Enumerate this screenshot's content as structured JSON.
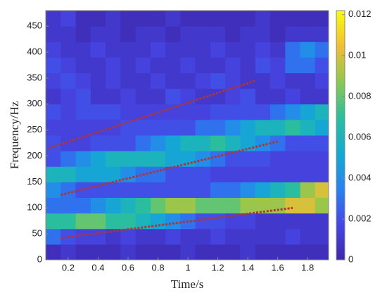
{
  "chart_data": {
    "type": "heatmap",
    "x_label": "Time/s",
    "y_label": "Frequency/Hz",
    "x": [
      0.1,
      0.2,
      0.3,
      0.4,
      0.5,
      0.6,
      0.7,
      0.8,
      0.9,
      1.0,
      1.1,
      1.2,
      1.3,
      1.4,
      1.5,
      1.6,
      1.7,
      1.8,
      1.9
    ],
    "y": [
      15,
      45,
      75,
      105,
      135,
      165,
      195,
      225,
      255,
      285,
      315,
      345,
      375,
      405,
      435,
      465
    ],
    "z": [
      [
        0.0005,
        0.001,
        0.0005,
        0.0005,
        0.0005,
        0.001,
        0.0005,
        0.0005,
        0.0005,
        0.001,
        0.0005,
        0.0005,
        0.0005,
        0.001,
        0.0005,
        0.0005,
        0.0005,
        0.0005,
        0.0005
      ],
      [
        0.003,
        0.002,
        0.0015,
        0.0015,
        0.001,
        0.0015,
        0.001,
        0.001,
        0.0015,
        0.001,
        0.001,
        0.0015,
        0.001,
        0.001,
        0.001,
        0.001,
        0.0015,
        0.001,
        0.001
      ],
      [
        0.007,
        0.007,
        0.008,
        0.008,
        0.007,
        0.007,
        0.006,
        0.005,
        0.004,
        0.003,
        0.002,
        0.002,
        0.0015,
        0.0015,
        0.001,
        0.001,
        0.001,
        0.001,
        0.001
      ],
      [
        0.003,
        0.003,
        0.003,
        0.004,
        0.005,
        0.006,
        0.007,
        0.008,
        0.009,
        0.009,
        0.008,
        0.008,
        0.008,
        0.009,
        0.009,
        0.009,
        0.01,
        0.01,
        0.009
      ],
      [
        0.004,
        0.003,
        0.002,
        0.002,
        0.002,
        0.002,
        0.002,
        0.002,
        0.002,
        0.002,
        0.002,
        0.003,
        0.003,
        0.004,
        0.005,
        0.006,
        0.007,
        0.009,
        0.01
      ],
      [
        0.006,
        0.006,
        0.005,
        0.005,
        0.005,
        0.004,
        0.003,
        0.003,
        0.002,
        0.002,
        0.002,
        0.0015,
        0.0015,
        0.0015,
        0.0015,
        0.0015,
        0.0015,
        0.0015,
        0.0015
      ],
      [
        0.002,
        0.003,
        0.004,
        0.005,
        0.006,
        0.006,
        0.006,
        0.006,
        0.005,
        0.005,
        0.004,
        0.003,
        0.002,
        0.002,
        0.002,
        0.0015,
        0.0015,
        0.0015,
        0.0015
      ],
      [
        0.002,
        0.0015,
        0.0015,
        0.002,
        0.002,
        0.002,
        0.003,
        0.004,
        0.005,
        0.006,
        0.006,
        0.007,
        0.006,
        0.005,
        0.004,
        0.003,
        0.002,
        0.002,
        0.002
      ],
      [
        0.0015,
        0.0015,
        0.0015,
        0.0015,
        0.0015,
        0.002,
        0.002,
        0.002,
        0.002,
        0.002,
        0.003,
        0.003,
        0.004,
        0.005,
        0.006,
        0.006,
        0.007,
        0.006,
        0.005
      ],
      [
        0.002,
        0.0015,
        0.002,
        0.002,
        0.002,
        0.0015,
        0.0015,
        0.0015,
        0.0015,
        0.0015,
        0.0015,
        0.002,
        0.002,
        0.002,
        0.002,
        0.003,
        0.004,
        0.005,
        0.006
      ],
      [
        0.001,
        0.0015,
        0.002,
        0.001,
        0.001,
        0.0015,
        0.001,
        0.001,
        0.002,
        0.0015,
        0.001,
        0.001,
        0.0015,
        0.002,
        0.001,
        0.001,
        0.0015,
        0.001,
        0.001
      ],
      [
        0.0015,
        0.002,
        0.0015,
        0.001,
        0.0015,
        0.001,
        0.001,
        0.0015,
        0.001,
        0.001,
        0.0015,
        0.002,
        0.0015,
        0.001,
        0.001,
        0.0015,
        0.001,
        0.001,
        0.0015
      ],
      [
        0.002,
        0.0015,
        0.001,
        0.001,
        0.0015,
        0.001,
        0.0015,
        0.001,
        0.001,
        0.0015,
        0.001,
        0.001,
        0.0015,
        0.001,
        0.002,
        0.0015,
        0.003,
        0.003,
        0.002
      ],
      [
        0.0015,
        0.001,
        0.001,
        0.0015,
        0.001,
        0.001,
        0.001,
        0.0015,
        0.001,
        0.001,
        0.001,
        0.0015,
        0.001,
        0.001,
        0.0015,
        0.001,
        0.003,
        0.004,
        0.003
      ],
      [
        0.001,
        0.001,
        0.0005,
        0.001,
        0.001,
        0.0005,
        0.001,
        0.001,
        0.0005,
        0.001,
        0.001,
        0.001,
        0.0005,
        0.001,
        0.001,
        0.0005,
        0.001,
        0.001,
        0.001
      ],
      [
        0.001,
        0.0015,
        0.0005,
        0.0005,
        0.001,
        0.0005,
        0.0005,
        0.0005,
        0.001,
        0.0005,
        0.0005,
        0.0005,
        0.0005,
        0.0005,
        0.001,
        0.0005,
        0.0005,
        0.0005,
        0.0005
      ]
    ],
    "xlim": [
      0.05,
      1.94
    ],
    "xticks": [
      0.2,
      0.4,
      0.6,
      0.8,
      1,
      1.2,
      1.4,
      1.6,
      1.8
    ],
    "ylim": [
      0,
      480
    ],
    "yticks": [
      0,
      50,
      100,
      150,
      200,
      250,
      300,
      350,
      400,
      450
    ],
    "colormap": "parula",
    "clim": [
      0,
      0.0122
    ],
    "cticks": [
      0,
      0.002,
      0.004,
      0.006,
      0.008,
      0.01,
      0.012
    ],
    "guide_lines": [
      {
        "x": [
          0.07,
          1.45
        ],
        "y": [
          215,
          345
        ]
      },
      {
        "x": [
          0.15,
          1.6
        ],
        "y": [
          125,
          228
        ]
      },
      {
        "x": [
          0.15,
          1.7
        ],
        "y": [
          42,
          100
        ]
      }
    ],
    "guide_color": "#b03535"
  }
}
